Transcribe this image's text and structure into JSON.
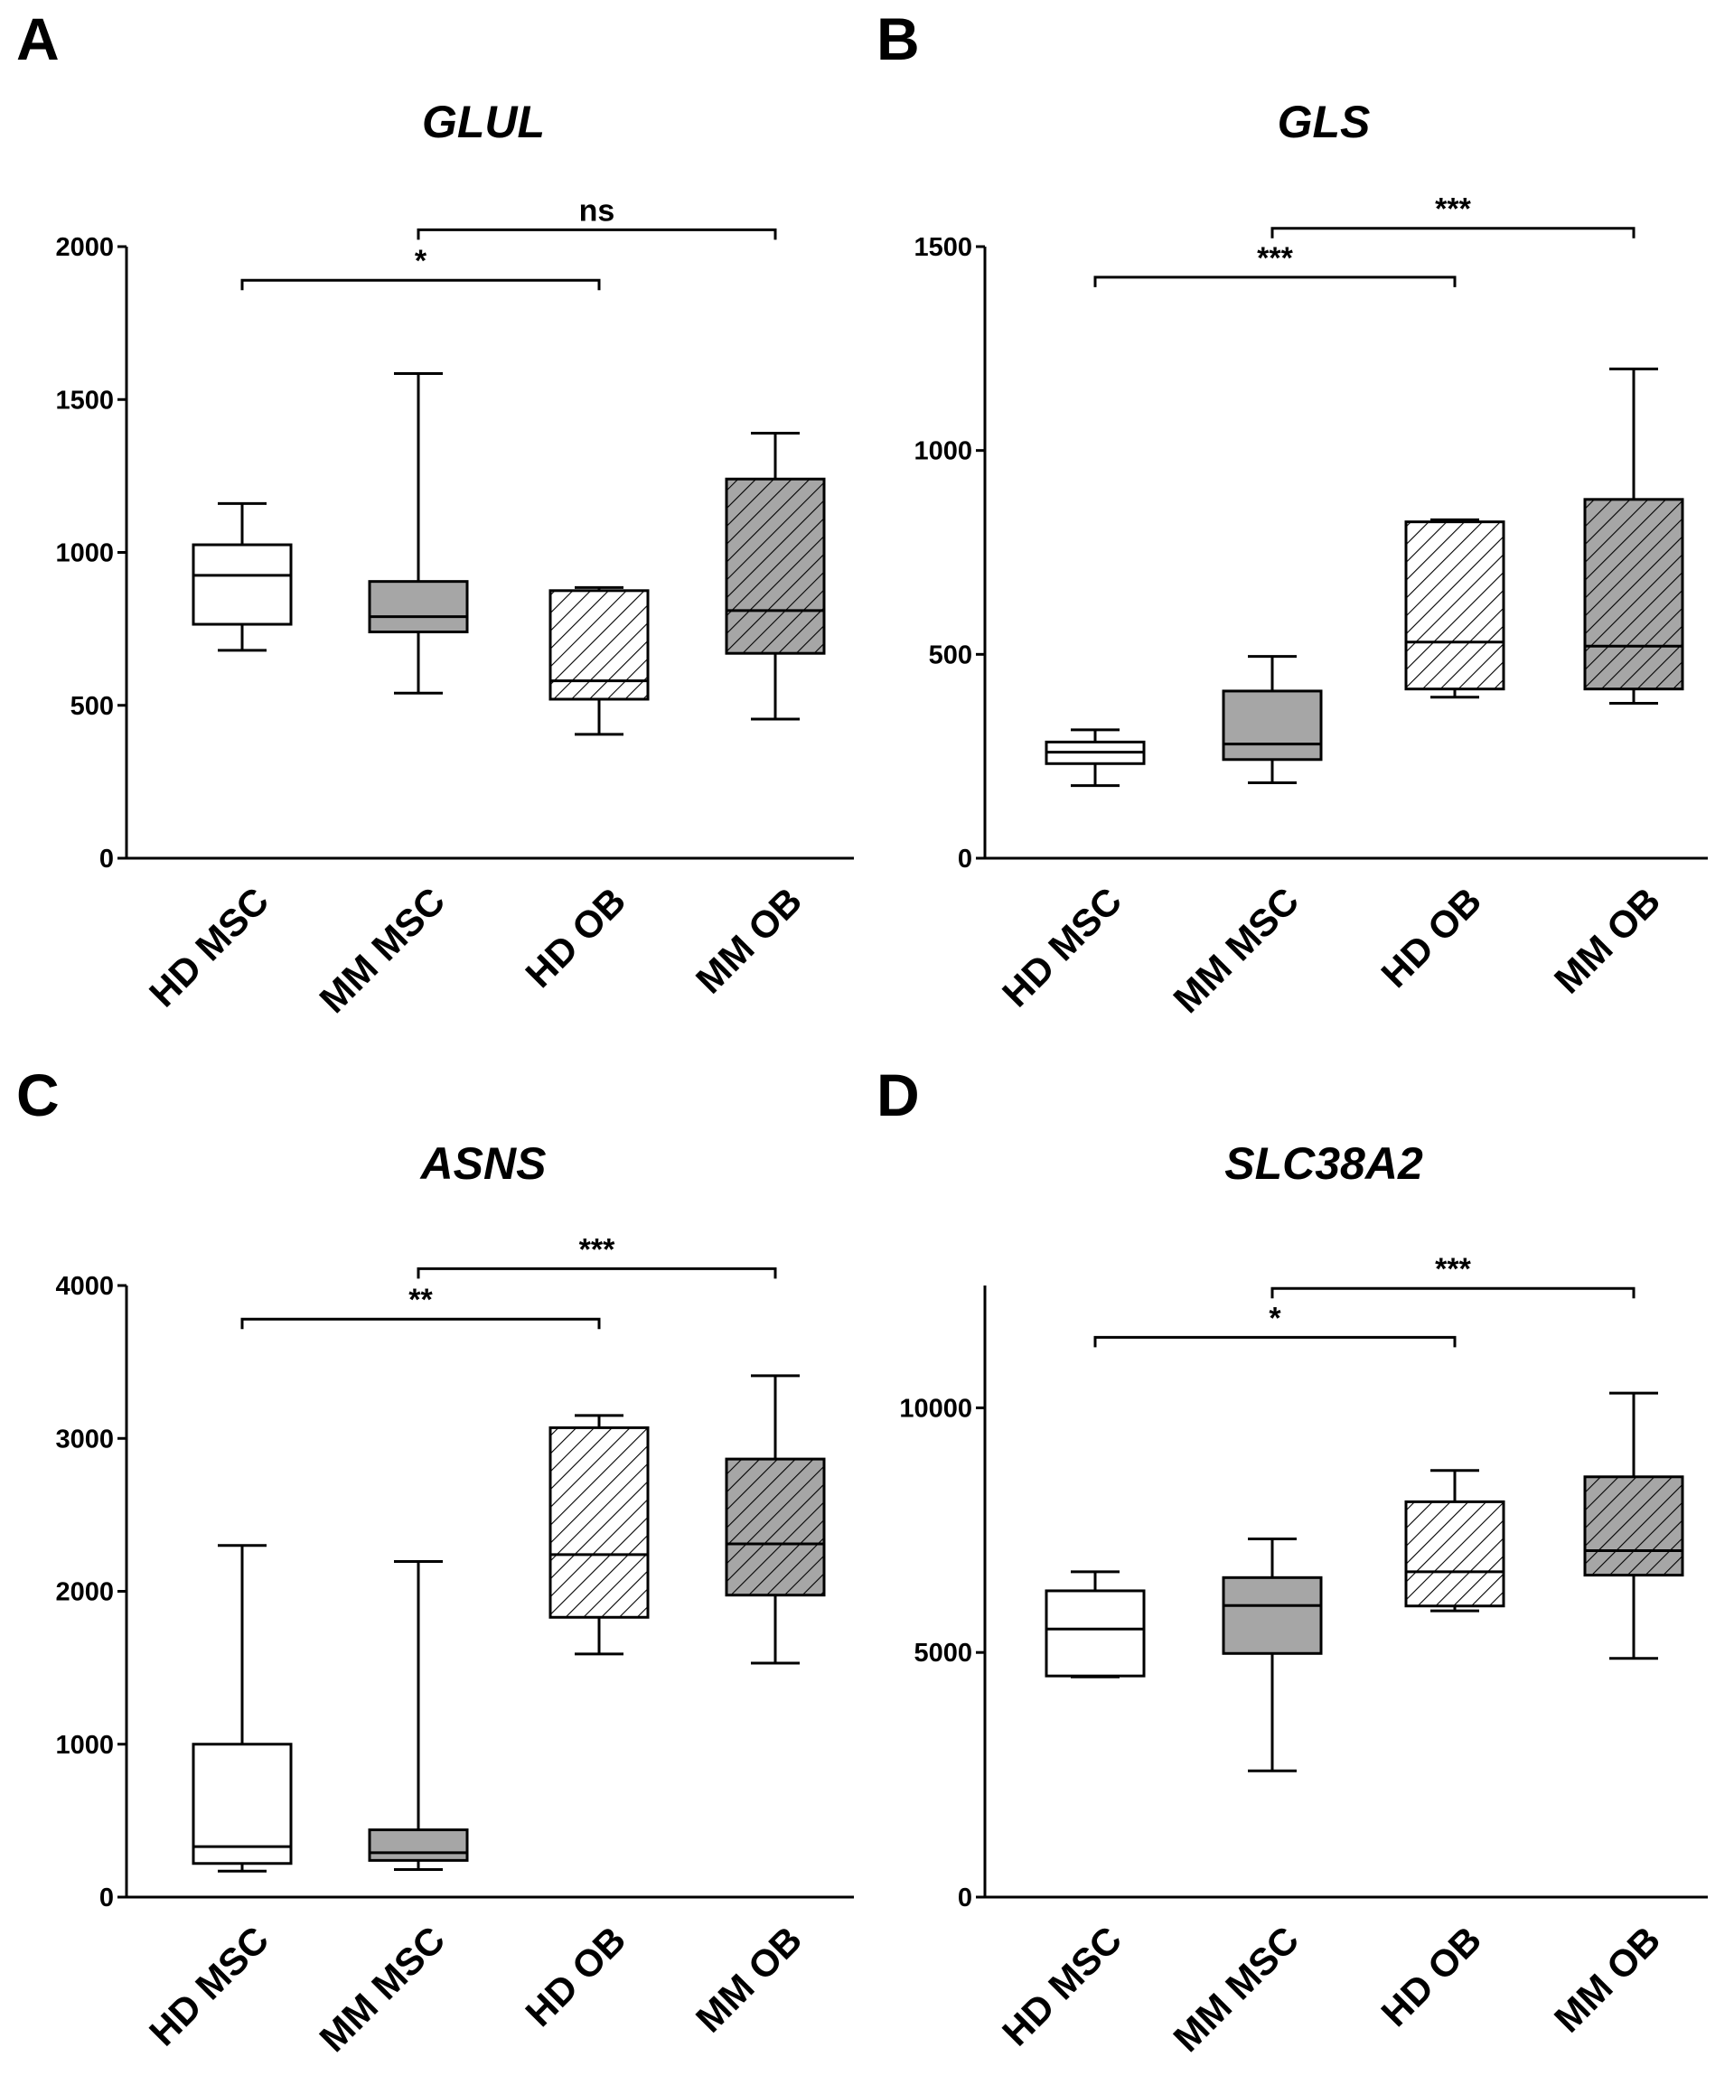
{
  "chart_data": [
    {
      "type": "boxplot",
      "panel": "A",
      "title": "GLUL",
      "categories": [
        "HD MSC",
        "MM MSC",
        "HD OB",
        "MM OB"
      ],
      "ylim": [
        0,
        2000
      ],
      "yticks": [
        0,
        500,
        1000,
        1500,
        2000
      ],
      "boxes": [
        {
          "category": "HD MSC",
          "min": 680,
          "q1": 765,
          "median": 925,
          "q3": 1025,
          "max": 1160,
          "fill": "white"
        },
        {
          "category": "MM MSC",
          "min": 540,
          "q1": 740,
          "median": 790,
          "q3": 905,
          "max": 1585,
          "fill": "gray"
        },
        {
          "category": "HD OB",
          "min": 405,
          "q1": 520,
          "median": 580,
          "q3": 875,
          "max": 885,
          "fill": "hatch-light"
        },
        {
          "category": "MM OB",
          "min": 455,
          "q1": 670,
          "median": 810,
          "q3": 1240,
          "max": 1390,
          "fill": "hatch-dark"
        }
      ],
      "significance": [
        {
          "from": "HD MSC",
          "to": "HD OB",
          "label": "*",
          "y": 1890
        },
        {
          "from": "MM MSC",
          "to": "MM OB",
          "label": "ns",
          "y": 2055
        }
      ]
    },
    {
      "type": "boxplot",
      "panel": "B",
      "title": "GLS",
      "categories": [
        "HD MSC",
        "MM MSC",
        "HD OB",
        "MM OB"
      ],
      "ylim": [
        0,
        1500
      ],
      "yticks": [
        0,
        500,
        1000,
        1500
      ],
      "boxes": [
        {
          "category": "HD MSC",
          "min": 178,
          "q1": 232,
          "median": 260,
          "q3": 285,
          "max": 315,
          "fill": "white"
        },
        {
          "category": "MM MSC",
          "min": 185,
          "q1": 242,
          "median": 280,
          "q3": 410,
          "max": 495,
          "fill": "gray"
        },
        {
          "category": "HD OB",
          "min": 395,
          "q1": 415,
          "median": 530,
          "q3": 825,
          "max": 830,
          "fill": "hatch-light"
        },
        {
          "category": "MM OB",
          "min": 380,
          "q1": 415,
          "median": 520,
          "q3": 880,
          "max": 1200,
          "fill": "hatch-dark"
        }
      ],
      "significance": [
        {
          "from": "HD MSC",
          "to": "HD OB",
          "label": "***",
          "y": 1425
        },
        {
          "from": "MM MSC",
          "to": "MM OB",
          "label": "***",
          "y": 1545
        }
      ]
    },
    {
      "type": "boxplot",
      "panel": "C",
      "title": "ASNS",
      "categories": [
        "HD MSC",
        "MM MSC",
        "HD OB",
        "MM OB"
      ],
      "ylim": [
        0,
        4000
      ],
      "yticks": [
        0,
        1000,
        2000,
        3000,
        4000
      ],
      "boxes": [
        {
          "category": "HD MSC",
          "min": 170,
          "q1": 220,
          "median": 330,
          "q3": 1000,
          "max": 2300,
          "fill": "white"
        },
        {
          "category": "MM MSC",
          "min": 180,
          "q1": 240,
          "median": 290,
          "q3": 440,
          "max": 2195,
          "fill": "gray"
        },
        {
          "category": "HD OB",
          "min": 1590,
          "q1": 1830,
          "median": 2240,
          "q3": 3070,
          "max": 3150,
          "fill": "hatch-light"
        },
        {
          "category": "MM OB",
          "min": 1530,
          "q1": 1975,
          "median": 2310,
          "q3": 2865,
          "max": 3410,
          "fill": "hatch-dark"
        }
      ],
      "significance": [
        {
          "from": "HD MSC",
          "to": "HD OB",
          "label": "**",
          "y": 3780
        },
        {
          "from": "MM MSC",
          "to": "MM OB",
          "label": "***",
          "y": 4110
        }
      ]
    },
    {
      "type": "boxplot",
      "panel": "D",
      "title": "SLC38A2",
      "categories": [
        "HD MSC",
        "MM MSC",
        "HD OB",
        "MM OB"
      ],
      "ylim": [
        0,
        12500
      ],
      "yticks": [
        0,
        5000,
        10000
      ],
      "boxes": [
        {
          "category": "HD MSC",
          "min": 4500,
          "q1": 4520,
          "median": 5480,
          "q3": 6260,
          "max": 6650,
          "fill": "white"
        },
        {
          "category": "MM MSC",
          "min": 2580,
          "q1": 4980,
          "median": 5960,
          "q3": 6530,
          "max": 7320,
          "fill": "gray"
        },
        {
          "category": "HD OB",
          "min": 5850,
          "q1": 5950,
          "median": 6650,
          "q3": 8080,
          "max": 8720,
          "fill": "hatch-light"
        },
        {
          "category": "MM OB",
          "min": 4880,
          "q1": 6580,
          "median": 7080,
          "q3": 8590,
          "max": 10300,
          "fill": "hatch-dark"
        }
      ],
      "significance": [
        {
          "from": "HD MSC",
          "to": "HD OB",
          "label": "*",
          "y": 11440
        },
        {
          "from": "MM MSC",
          "to": "MM OB",
          "label": "***",
          "y": 12440
        }
      ]
    }
  ],
  "colors": {
    "gray_box": "#a6a6a6",
    "hatch_dark_bg": "#a6a6a6",
    "hatch_light_bg": "#ffffff",
    "stroke": "#000000"
  }
}
